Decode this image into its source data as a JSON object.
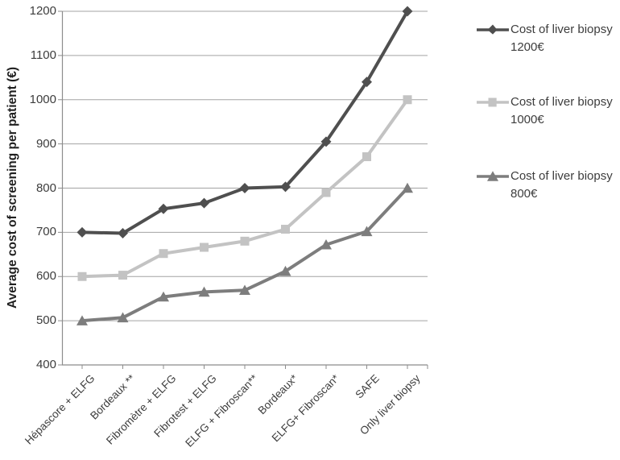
{
  "chart_data": {
    "type": "line",
    "title": "",
    "xlabel": "",
    "ylabel": "Average cost of screening per patient (€)",
    "ylim": [
      400,
      1200
    ],
    "yticks": [
      400,
      500,
      600,
      700,
      800,
      900,
      1000,
      1100,
      1200
    ],
    "grid": true,
    "legend_position": "right",
    "categories": [
      "Hépascore + ELFG",
      "Bordeaux **",
      "Fibromètre + ELFG",
      "Fibrotest + ELFG",
      "ELFG + Fibroscan**",
      "Bordeaux*",
      "ELFG+ Fibroscan*",
      "SAFE",
      "Only liver biopsy"
    ],
    "series": [
      {
        "name": "Cost of liver biopsy 1200€",
        "legend_lines": [
          "Cost of liver biopsy",
          "1200€"
        ],
        "marker": "diamond",
        "color": "#4f4f4f",
        "values": [
          700,
          698,
          753,
          766,
          800,
          803,
          905,
          1040,
          1200
        ]
      },
      {
        "name": "Cost of liver biopsy 1000€",
        "legend_lines": [
          "Cost of liver biopsy",
          "1000€"
        ],
        "marker": "square",
        "color": "#c3c3c3",
        "values": [
          600,
          603,
          652,
          666,
          680,
          707,
          790,
          871,
          1000
        ]
      },
      {
        "name": "Cost of liver biopsy 800€",
        "legend_lines": [
          "Cost of liver biopsy",
          "800€"
        ],
        "marker": "triangle",
        "color": "#7d7d7d",
        "values": [
          500,
          507,
          554,
          565,
          569,
          612,
          672,
          702,
          800
        ]
      }
    ],
    "colors": {
      "background": "#ffffff",
      "gridline": "#a3a3a3",
      "axis": "#8c8c8c",
      "tick_text": "#3d3d3d",
      "axis_title_text": "#1f1f1f",
      "legend_text": "#3d3d3d"
    }
  }
}
